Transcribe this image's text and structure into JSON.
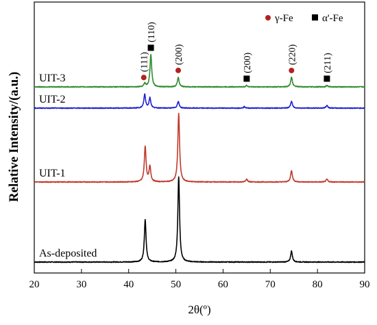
{
  "chart_data": {
    "type": "line",
    "xlabel": "2θ(º)",
    "ylabel": "Relative Intensity/(a.u.)",
    "xlim": [
      20,
      90
    ],
    "xticks": [
      20,
      30,
      40,
      50,
      60,
      70,
      80,
      90
    ],
    "grid": false,
    "legend_position": "top-right",
    "legend": [
      {
        "label": "γ-Fe",
        "marker": "circle",
        "color": "#b22222"
      },
      {
        "label": "α'-Fe",
        "marker": "square",
        "color": "#000000"
      }
    ],
    "series": [
      {
        "name": "As-deposited",
        "color": "#000000",
        "baseline": 0,
        "peaks": [
          {
            "x": 43.5,
            "height": 62
          },
          {
            "x": 50.6,
            "height": 125
          },
          {
            "x": 74.5,
            "height": 16
          }
        ]
      },
      {
        "name": "UIT-1",
        "color": "#c0392b",
        "baseline": 117,
        "peaks": [
          {
            "x": 43.5,
            "height": 52
          },
          {
            "x": 44.5,
            "height": 22
          },
          {
            "x": 50.6,
            "height": 100
          },
          {
            "x": 65.0,
            "height": 4
          },
          {
            "x": 74.5,
            "height": 17
          },
          {
            "x": 82.0,
            "height": 4
          }
        ]
      },
      {
        "name": "UIT-2",
        "color": "#1f1fd6",
        "baseline": 225,
        "peaks": [
          {
            "x": 43.4,
            "height": 20
          },
          {
            "x": 44.5,
            "height": 15
          },
          {
            "x": 50.5,
            "height": 10
          },
          {
            "x": 64.5,
            "height": 2
          },
          {
            "x": 74.5,
            "height": 10
          },
          {
            "x": 82.0,
            "height": 4
          }
        ]
      },
      {
        "name": "UIT-3",
        "color": "#2e8b2e",
        "baseline": 256,
        "peaks": [
          {
            "x": 43.4,
            "height": 5
          },
          {
            "x": 44.7,
            "height": 47
          },
          {
            "x": 50.5,
            "height": 14
          },
          {
            "x": 65.0,
            "height": 2
          },
          {
            "x": 74.5,
            "height": 14
          },
          {
            "x": 82.0,
            "height": 2
          }
        ]
      }
    ],
    "annotations": [
      {
        "text": "(111)",
        "x": 43.2,
        "marker": "circle",
        "target": "UIT-3"
      },
      {
        "text": "(110)",
        "x": 44.7,
        "marker": "square",
        "target": "UIT-3"
      },
      {
        "text": "(200)",
        "x": 50.5,
        "marker": "circle",
        "target": "UIT-3"
      },
      {
        "text": "(200)",
        "x": 65.0,
        "marker": "square",
        "target": "UIT-3"
      },
      {
        "text": "(220)",
        "x": 74.5,
        "marker": "circle",
        "target": "UIT-3"
      },
      {
        "text": "(211)",
        "x": 82.0,
        "marker": "square",
        "target": "UIT-3"
      }
    ]
  }
}
